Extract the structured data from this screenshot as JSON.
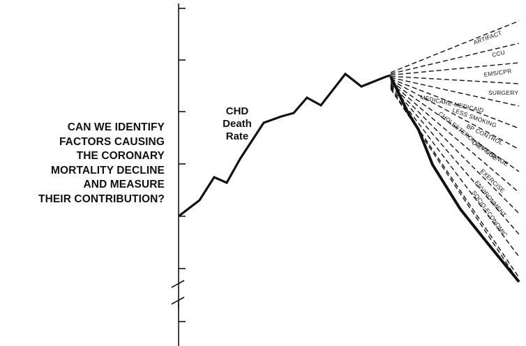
{
  "question": {
    "lines": [
      "CAN WE IDENTIFY",
      "FACTORS CAUSING",
      "THE CORONARY",
      "MORTALITY DECLINE",
      "AND MEASURE",
      "THEIR CONTRIBUTION?"
    ]
  },
  "series_label": {
    "lines": [
      "CHD",
      "Death",
      "Rate"
    ]
  },
  "factors": [
    "ARTIFACT",
    "CCU",
    "EMS/CPR",
    "SURGERY",
    "MEDICARE-MEDICAID",
    "LESS SMOKING",
    "BP CONTROL",
    "DIET CHANGE",
    "CHOLESTEROL CHANGE",
    "EXERCISE",
    "ENVIRONMENT",
    "SOCIO-ECONOMIC"
  ]
}
